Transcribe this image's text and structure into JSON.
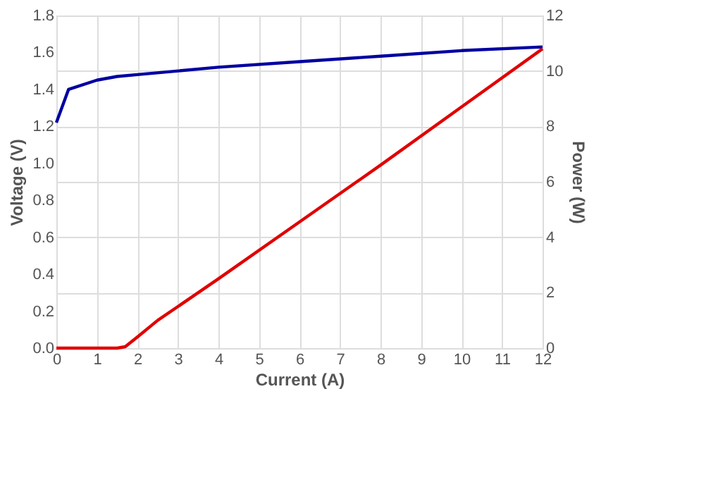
{
  "chart_data": {
    "type": "line",
    "xlabel": "Current (A)",
    "ylabel": "Voltage (V)",
    "y2label": "Power (W)",
    "xlim": [
      0,
      12
    ],
    "xticks": [
      0,
      1,
      2,
      3,
      4,
      5,
      6,
      7,
      8,
      9,
      10,
      11,
      12
    ],
    "ylim": [
      0,
      1.8
    ],
    "yticks": [
      {
        "value": 0,
        "label": "0.0"
      },
      0.2,
      0.4,
      0.6,
      0.8,
      {
        "value": 1,
        "label": "1.0"
      },
      1.2,
      1.4,
      1.6,
      1.8
    ],
    "y2lim": [
      0,
      12
    ],
    "y2ticks": [
      0,
      2,
      4,
      6,
      8,
      10,
      12
    ],
    "grid": true,
    "marker": "none",
    "line_style": "solid",
    "series": [
      {
        "color": "#0000a0",
        "x": [
          0,
          0.3,
          1,
          1.5,
          2,
          4,
          6,
          8,
          10,
          12
        ],
        "values": [
          1.22,
          1.4,
          1.45,
          1.47,
          1.48,
          1.52,
          1.55,
          1.58,
          1.61,
          1.63
        ]
      },
      {
        "color": "#e00000",
        "axis": "y2",
        "x": [
          0,
          1.5,
          1.7,
          2,
          2.5,
          3,
          4,
          6,
          8,
          10,
          12
        ],
        "values": [
          0,
          0,
          0.05,
          0.4,
          1.0,
          1.5,
          2.5,
          4.55,
          6.6,
          8.7,
          10.8
        ]
      }
    ]
  }
}
